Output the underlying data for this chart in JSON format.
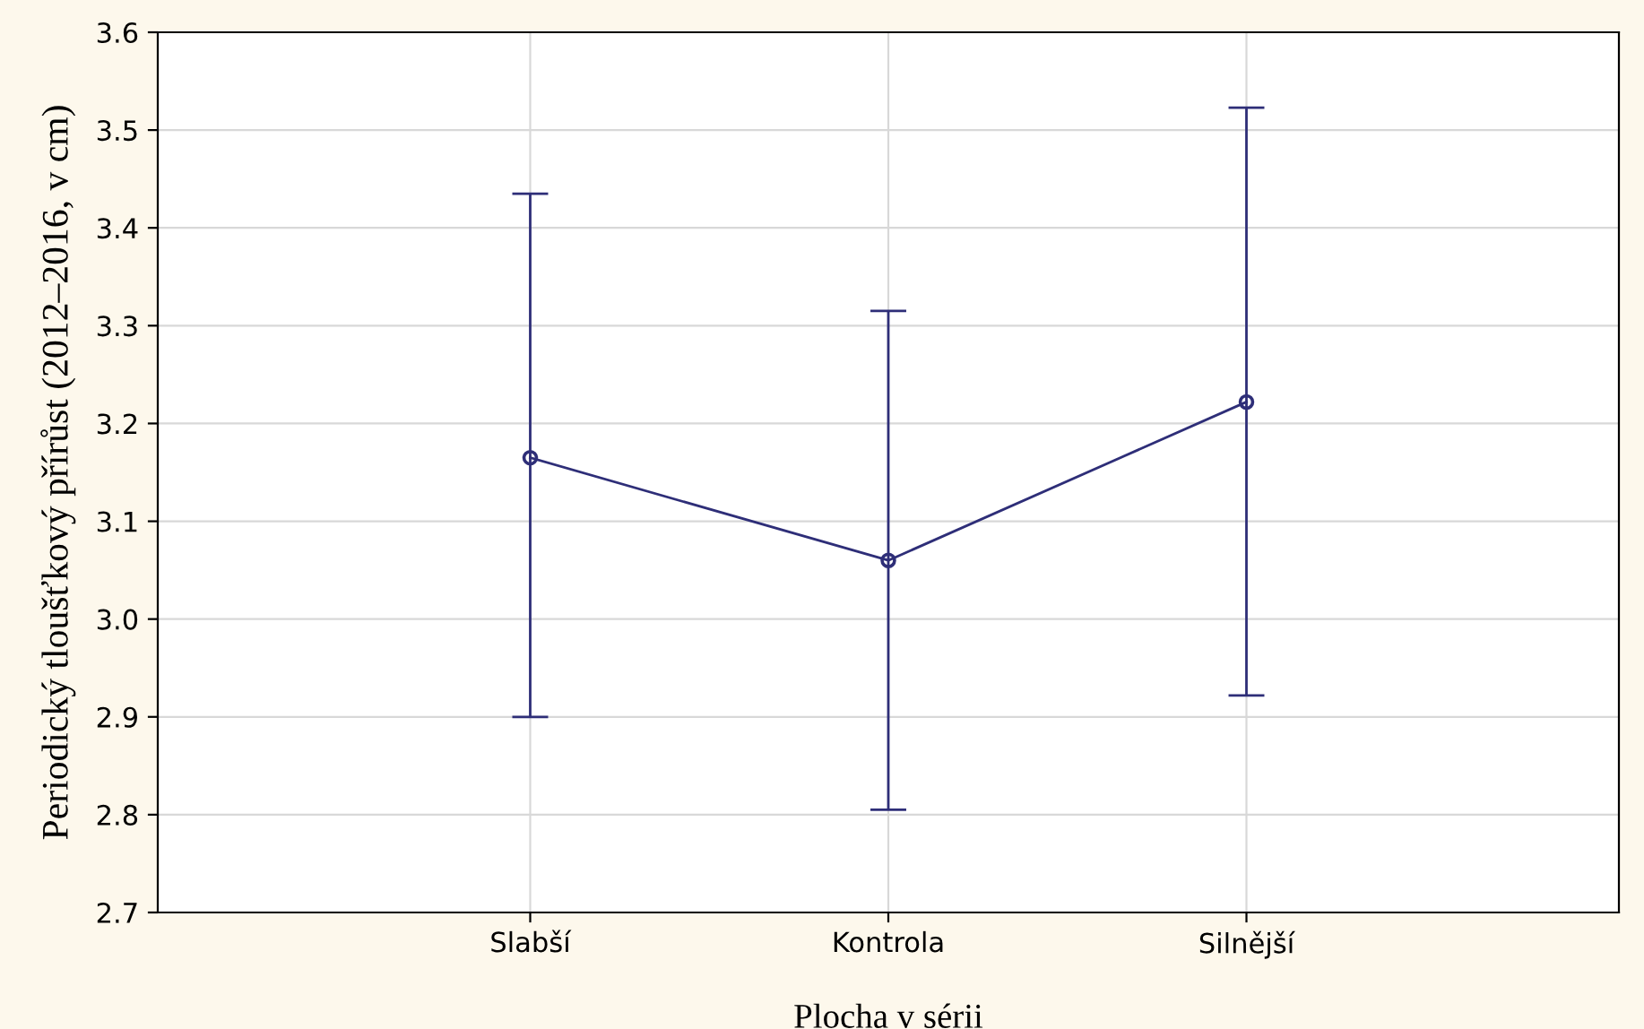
{
  "chart_data": {
    "type": "line",
    "xlabel": "Plocha v sérii",
    "ylabel": "Periodický tloušťkový přírůst (2012–2016, v cm)",
    "categories": [
      "Slabší",
      "Kontrola",
      "Silnější"
    ],
    "series": [
      {
        "color": "#2e2e78",
        "values": [
          3.165,
          3.06,
          3.222
        ],
        "errors": [
          [
            2.9,
            3.435
          ],
          [
            2.805,
            3.315
          ],
          [
            2.922,
            3.523
          ]
        ]
      }
    ],
    "ylim": [
      2.7,
      3.6
    ],
    "yticks": [
      2.7,
      2.8,
      2.9,
      {
        "value": 3.0,
        "label": "3.0"
      },
      3.1,
      3.2,
      3.3,
      3.4,
      3.5,
      3.6
    ],
    "grid": true,
    "marker": "circle",
    "line_style": "solid"
  }
}
